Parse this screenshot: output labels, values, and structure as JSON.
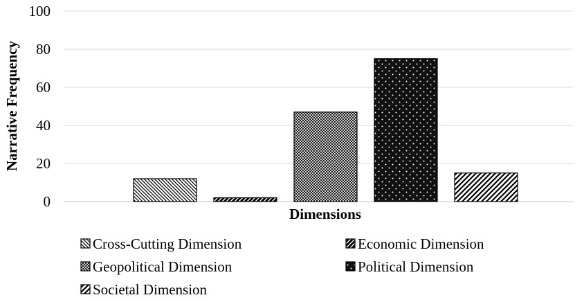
{
  "chart_data": {
    "type": "bar",
    "xlabel": "Dimensions",
    "ylabel": "Narrative Frequency",
    "ylim": [
      0,
      100
    ],
    "yticks": [
      0,
      20,
      40,
      60,
      80,
      100
    ],
    "grid": true,
    "legend_position": "bottom",
    "series": [
      {
        "name": "Cross-Cutting Dimension",
        "value": 12,
        "pattern": "diagonal-fine-left"
      },
      {
        "name": "Economic Dimension",
        "value": 2,
        "pattern": "diagonal-dense-black"
      },
      {
        "name": "Geopolitical Dimension",
        "value": 47,
        "pattern": "crosshatch-fine"
      },
      {
        "name": "Political Dimension",
        "value": 75,
        "pattern": "dotted-black"
      },
      {
        "name": "Societal Dimension",
        "value": 15,
        "pattern": "diagonal-wide-right"
      }
    ]
  }
}
